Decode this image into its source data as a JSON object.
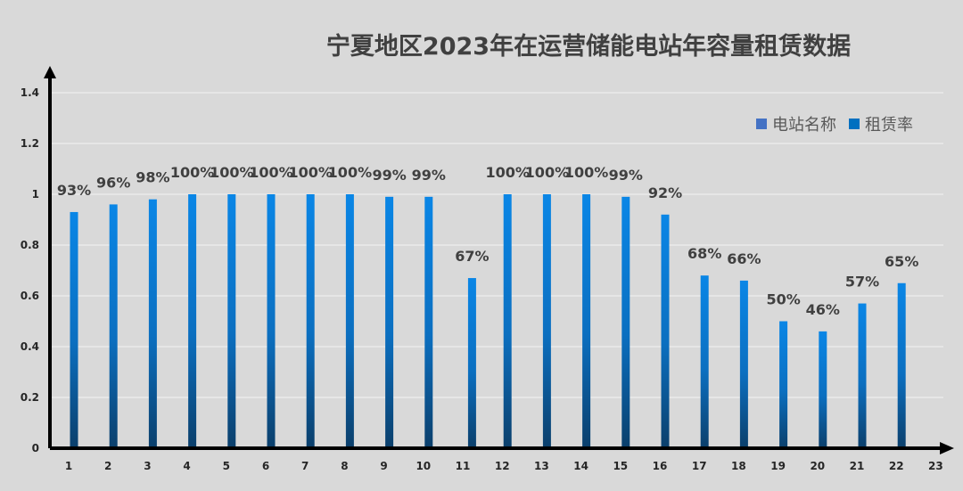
{
  "chart_data": {
    "type": "bar",
    "title": "宁夏地区2023年在运营储能电站年容量租赁数据",
    "xlabel": "",
    "ylabel": "",
    "categories": [
      "1",
      "2",
      "3",
      "4",
      "5",
      "6",
      "7",
      "8",
      "9",
      "10",
      "11",
      "12",
      "13",
      "14",
      "15",
      "16",
      "17",
      "18",
      "19",
      "20",
      "21",
      "22",
      "23"
    ],
    "x_ticks": [
      "1",
      "2",
      "3",
      "4",
      "5",
      "6",
      "7",
      "8",
      "9",
      "10",
      "11",
      "12",
      "13",
      "14",
      "15",
      "16",
      "17",
      "18",
      "19",
      "20",
      "21",
      "22",
      "23"
    ],
    "y_ticks": [
      "0",
      "0.2",
      "0.4",
      "0.6",
      "0.8",
      "1",
      "1.2",
      "1.4"
    ],
    "ylim": [
      0,
      1.4
    ],
    "grid": true,
    "legend_position": "top-right",
    "legend": [
      {
        "name": "电站名称",
        "color": "#4472c4"
      },
      {
        "name": "租赁率",
        "color": "#0070c0"
      }
    ],
    "series": [
      {
        "name": "租赁率",
        "color": "#0a7fd8",
        "values": [
          0.93,
          0.96,
          0.98,
          1.0,
          1.0,
          1.0,
          1.0,
          1.0,
          0.99,
          0.99,
          null,
          1.0,
          1.0,
          1.0,
          0.99,
          0.92,
          0.68,
          0.66,
          0.5,
          0.46,
          0.57,
          0.65,
          null
        ],
        "labels": [
          "93%",
          "96%",
          "98%",
          "100%",
          "100%",
          "100%",
          "100%",
          "100%",
          "99%",
          "99%",
          "",
          "100%",
          "100%",
          "100%",
          "99%",
          "92%",
          "68%",
          "66%",
          "50%",
          "46%",
          "57%",
          "65%",
          ""
        ]
      }
    ],
    "bar_positions": [
      1,
      2,
      3,
      4,
      5,
      6,
      7,
      8,
      9,
      10,
      11.1,
      12,
      13,
      14,
      15,
      16,
      17,
      18,
      19,
      20,
      21,
      22
    ],
    "extra_bar": {
      "value": 0.67,
      "label": "67%",
      "after_category": "11"
    }
  }
}
